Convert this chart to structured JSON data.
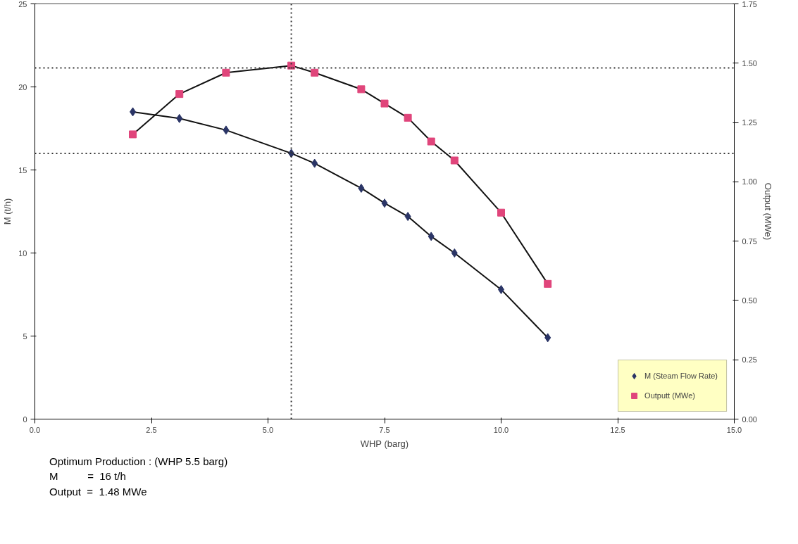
{
  "chart_data": {
    "type": "line",
    "xlabel": "WHP (barg)",
    "ylabel": "M (t/h)",
    "y2label": "Output (MWe)",
    "xlim": [
      0,
      15
    ],
    "xticks": [
      {
        "value": 0,
        "label": "0.0"
      },
      {
        "value": 2.5,
        "label": "2.5"
      },
      {
        "value": 5,
        "label": "5.0"
      },
      {
        "value": 7.5,
        "label": "7.5"
      },
      {
        "value": 10,
        "label": "10.0"
      },
      {
        "value": 12.5,
        "label": "12.5"
      },
      {
        "value": 15,
        "label": "15.0"
      }
    ],
    "ylim": [
      0,
      25
    ],
    "yticks": [
      0,
      5,
      10,
      15,
      20,
      25
    ],
    "y2lim": [
      0,
      1.75
    ],
    "y2ticks": [
      {
        "value": 0,
        "label": "0.00"
      },
      {
        "value": 0.25,
        "label": "0.25"
      },
      {
        "value": 0.5,
        "label": "0.50"
      },
      {
        "value": 0.75,
        "label": "0.75"
      },
      {
        "value": 1,
        "label": "1.00"
      },
      {
        "value": 1.25,
        "label": "1.25"
      },
      {
        "value": 1.5,
        "label": "1.50"
      },
      {
        "value": 1.75,
        "label": "1.75"
      }
    ],
    "x": [
      2.1,
      3.1,
      4.1,
      5.5,
      6.0,
      7.0,
      7.5,
      8.0,
      8.5,
      9.0,
      10.0,
      11.0
    ],
    "series": [
      {
        "name": "M (Steam Flow Rate)",
        "color": "#2b3566",
        "marker": "diamond",
        "values": [
          18.5,
          18.1,
          17.4,
          16.0,
          15.4,
          13.9,
          13.0,
          12.2,
          11.0,
          10.0,
          7.8,
          4.9
        ]
      },
      {
        "name": "Outputt (MWe)",
        "color": "#e0457b",
        "marker": "square",
        "axis": "y2",
        "values": [
          1.2,
          1.37,
          1.46,
          1.49,
          1.46,
          1.39,
          1.33,
          1.27,
          1.17,
          1.09,
          0.87,
          0.57
        ]
      }
    ],
    "ref_lines": [
      {
        "axis": "x",
        "value": 5.5,
        "line_style": "dotted"
      },
      {
        "axis": "y",
        "value": 16,
        "line_style": "dotted"
      },
      {
        "axis": "y2",
        "value": 1.48,
        "line_style": "dotted"
      }
    ],
    "legend": "bottom right",
    "grid": false,
    "annotations": [
      "Optimum Production : (WHP 5.5 barg)",
      "M          =  16 t/h",
      "Output  =  1.48 MWe"
    ]
  }
}
